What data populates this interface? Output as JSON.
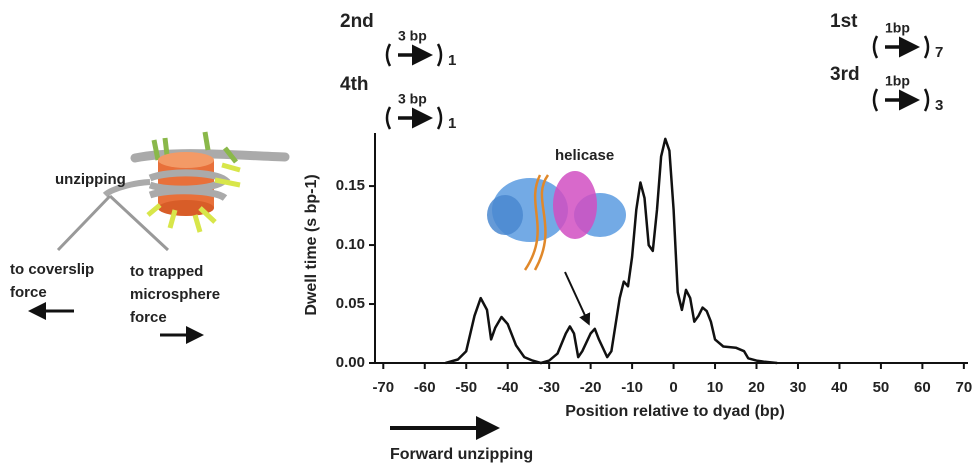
{
  "chart_data": {
    "type": "line",
    "x_label": "Position relative to dyad (bp)",
    "y_label": "Dwell time (s bp-1)",
    "xlim": [
      -72,
      71
    ],
    "ylim": [
      0,
      0.195
    ],
    "xticks": [
      -70,
      -60,
      -50,
      -40,
      -30,
      -20,
      -10,
      0,
      10,
      20,
      30,
      40,
      50,
      60,
      70
    ],
    "yticks": [
      {
        "value": 0,
        "label": "0.00"
      },
      {
        "value": 0.05,
        "label": "0.05"
      },
      {
        "value": 0.1,
        "label": "0.10"
      },
      {
        "value": 0.15,
        "label": "0.15"
      }
    ],
    "color": "#111111",
    "x": [
      -55,
      -52,
      -50,
      -48,
      -46.5,
      -45,
      -44,
      -43,
      -41.5,
      -40,
      -38,
      -36,
      -34,
      -32,
      -30,
      -28,
      -26,
      -25,
      -24,
      -23,
      -22,
      -20,
      -19,
      -18,
      -16,
      -15,
      -13,
      -12,
      -11,
      -10,
      -9,
      -8,
      -7,
      -6,
      -5,
      -4,
      -3,
      -2,
      -1,
      0,
      1,
      2,
      3,
      4,
      5,
      6,
      7,
      8,
      9,
      10,
      12,
      15,
      17,
      18,
      20,
      22,
      25
    ],
    "values": [
      0.0,
      0.003,
      0.01,
      0.04,
      0.055,
      0.045,
      0.02,
      0.03,
      0.039,
      0.033,
      0.015,
      0.005,
      0.002,
      0.0,
      0.002,
      0.008,
      0.025,
      0.031,
      0.025,
      0.005,
      0.01,
      0.025,
      0.029,
      0.02,
      0.005,
      0.01,
      0.055,
      0.069,
      0.065,
      0.09,
      0.13,
      0.153,
      0.14,
      0.1,
      0.095,
      0.13,
      0.175,
      0.19,
      0.18,
      0.13,
      0.06,
      0.045,
      0.062,
      0.055,
      0.035,
      0.04,
      0.047,
      0.044,
      0.035,
      0.02,
      0.014,
      0.013,
      0.01,
      0.004,
      0.002,
      0.001,
      0.0
    ],
    "inset_label": "helicase",
    "steps": [
      {
        "order": "2nd",
        "size": "3 bp",
        "count": 1
      },
      {
        "order": "4th",
        "size": "3 bp",
        "count": 1
      },
      {
        "order": "1st",
        "size": "1bp",
        "count": 7
      },
      {
        "order": "3rd",
        "size": "1bp",
        "count": 3
      }
    ],
    "diagram": {
      "unzipping": "unzipping",
      "left_lines": [
        "to coverslip",
        "force"
      ],
      "right_lines": [
        "to trapped",
        "microsphere",
        "force"
      ],
      "direction": "Forward unzipping"
    }
  }
}
